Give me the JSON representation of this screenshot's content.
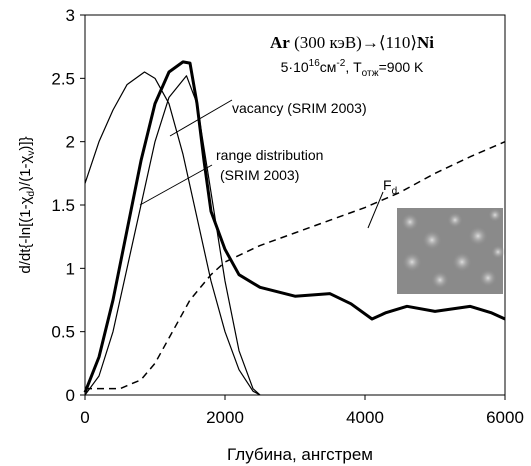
{
  "chart_data": {
    "type": "line",
    "title_parts": [
      "Ar",
      " (300 кэВ)→⟨110⟩",
      "Ni"
    ],
    "subtitle_parts": [
      "5·10",
      "16",
      "см",
      "-2",
      ", T",
      "отж",
      "=900 K"
    ],
    "x_label": "Глубина, ангстрем",
    "y_label_parts": [
      "d/dt{-ln[(1-χ",
      "d",
      ")/(1-χ",
      "v",
      ")]}"
    ],
    "annotations": [
      "vacancy (SRIM 2003)",
      "range distribution",
      "(SRIM 2003)"
    ],
    "fd_label": [
      "F",
      "d"
    ],
    "xlim": [
      0,
      6000
    ],
    "xticks": [
      0,
      2000,
      4000,
      6000
    ],
    "ylim": [
      0,
      3
    ],
    "yticks": [
      0,
      0.5,
      1,
      1.5,
      2,
      2.5,
      3
    ],
    "grid": false,
    "series": [
      {
        "color": "#000",
        "width": 3,
        "dash": false,
        "x": [
          0,
          200,
          400,
          600,
          800,
          1000,
          1200,
          1400,
          1500,
          1600,
          1700,
          1800,
          2000,
          2200,
          2500,
          3000,
          3500,
          3800,
          4100,
          4300,
          4600,
          5000,
          5500,
          5800,
          6000
        ],
        "values": [
          0.02,
          0.3,
          0.75,
          1.3,
          1.85,
          2.3,
          2.55,
          2.63,
          2.62,
          2.3,
          1.85,
          1.45,
          1.15,
          0.95,
          0.85,
          0.78,
          0.8,
          0.72,
          0.6,
          0.65,
          0.7,
          0.66,
          0.7,
          0.65,
          0.6
        ]
      },
      {
        "color": "#000",
        "width": 1.2,
        "dash": false,
        "x": [
          0,
          200,
          400,
          600,
          850,
          1000,
          1200,
          1400,
          1600,
          1800,
          2000,
          2200,
          2400,
          2500
        ],
        "values": [
          1.67,
          2.0,
          2.25,
          2.45,
          2.55,
          2.5,
          2.3,
          1.9,
          1.4,
          0.9,
          0.5,
          0.2,
          0.03,
          0
        ]
      },
      {
        "color": "#000",
        "width": 1.2,
        "dash": false,
        "x": [
          0,
          200,
          400,
          600,
          800,
          1000,
          1200,
          1450,
          1600,
          1800,
          2000,
          2200,
          2400,
          2500
        ],
        "values": [
          0,
          0.15,
          0.5,
          1.0,
          1.5,
          2.0,
          2.35,
          2.52,
          2.3,
          1.6,
          0.9,
          0.35,
          0.05,
          0
        ]
      },
      {
        "color": "#000",
        "width": 1.5,
        "dash": true,
        "x": [
          0,
          500,
          800,
          1000,
          1200,
          1500,
          1800,
          2000,
          2500,
          3000,
          3500,
          4000,
          4500,
          5000,
          5500,
          6000
        ],
        "values": [
          0.05,
          0.05,
          0.12,
          0.25,
          0.45,
          0.75,
          0.95,
          1.05,
          1.18,
          1.28,
          1.38,
          1.48,
          1.6,
          1.75,
          1.88,
          2.0
        ]
      }
    ]
  }
}
